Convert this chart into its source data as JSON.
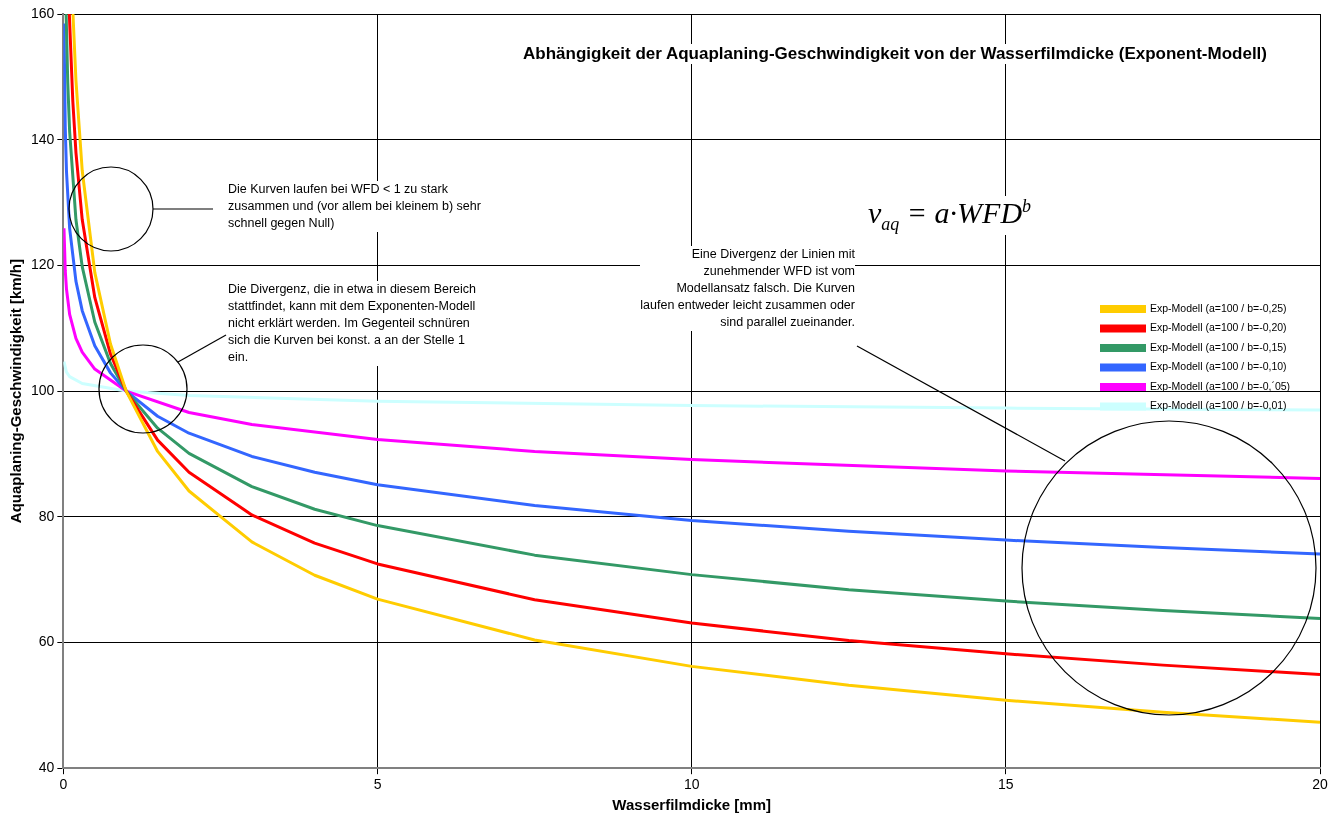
{
  "chart_data": {
    "type": "line",
    "title": "Abhängigkeit der Aquaplaning-Geschwindigkeit von der Wasserfilmdicke  (Exponent-Modell)",
    "xlabel": "Wasserfilmdicke [mm]",
    "ylabel": "Aquaplaning-Geschwindigkeit [km/h]",
    "xlim": [
      0,
      20
    ],
    "xticks": [
      0,
      5,
      10,
      15,
      20
    ],
    "ylim": [
      40,
      160
    ],
    "yticks": [
      40,
      60,
      80,
      100,
      120,
      140,
      160
    ],
    "grid": true,
    "legend": "right",
    "marker": "none",
    "series": [
      {
        "name": "Exp-Modell (a=100 / b=-0,25)",
        "color": "#ffcc00",
        "x": [
          0.153,
          0.2,
          0.3,
          0.5,
          0.75,
          1,
          1.5,
          2,
          3,
          4,
          5,
          7.5,
          10,
          12.5,
          15,
          17.5,
          20
        ],
        "values": [
          160,
          149.5,
          135.1,
          118.9,
          107.5,
          100,
          90.4,
          84.1,
          76.0,
          70.7,
          66.9,
          60.4,
          56.2,
          53.2,
          50.8,
          48.9,
          47.3
        ]
      },
      {
        "name": "Exp-Modell (a=100 / b=-0,20)",
        "color": "#ff0000",
        "x": [
          0.095,
          0.15,
          0.2,
          0.3,
          0.5,
          0.75,
          1,
          1.5,
          2,
          3,
          4,
          5,
          7.5,
          10,
          12.5,
          15,
          17.5,
          20
        ],
        "values": [
          160,
          146.2,
          138.0,
          127.3,
          114.9,
          105.9,
          100,
          92.2,
          87.1,
          80.3,
          75.8,
          72.5,
          66.8,
          63.1,
          60.3,
          58.2,
          56.4,
          54.9
        ]
      },
      {
        "name": "Exp-Modell (a=100 / b=-0,15)",
        "color": "#339966",
        "x": [
          0.044,
          0.07,
          0.1,
          0.2,
          0.3,
          0.5,
          0.75,
          1,
          1.5,
          2,
          3,
          4,
          5,
          7.5,
          10,
          12.5,
          15,
          17.5,
          20
        ],
        "values": [
          160,
          149.1,
          141.3,
          127.3,
          119.8,
          111.0,
          104.4,
          100,
          94.1,
          90.1,
          84.8,
          81.2,
          78.6,
          73.9,
          70.8,
          68.4,
          66.6,
          65.1,
          63.8
        ]
      },
      {
        "name": "Exp-Modell (a=100 / b=-0,10)",
        "color": "#3366ff",
        "x": [
          0.01,
          0.03,
          0.05,
          0.1,
          0.2,
          0.3,
          0.5,
          0.75,
          1,
          1.5,
          2,
          3,
          4,
          5,
          7.5,
          10,
          12.5,
          15,
          17.5,
          20
        ],
        "values": [
          158.5,
          142.0,
          134.9,
          125.9,
          117.5,
          112.8,
          107.2,
          102.9,
          100,
          96.0,
          93.3,
          89.6,
          87.1,
          85.1,
          81.8,
          79.4,
          77.7,
          76.3,
          75.1,
          74.1
        ]
      },
      {
        "name": "Exp-Modell (a=100 / b=-0,´05)",
        "color": "#ff00ff",
        "x": [
          0.01,
          0.03,
          0.05,
          0.1,
          0.2,
          0.3,
          0.5,
          1,
          2,
          3,
          5,
          7.5,
          10,
          15,
          20
        ],
        "values": [
          125.9,
          119.2,
          116.2,
          112.2,
          108.4,
          106.2,
          103.5,
          100,
          96.6,
          94.7,
          92.3,
          90.4,
          89.1,
          87.3,
          86.1
        ]
      },
      {
        "name": "Exp-Modell (a=100 / b=-0,01)",
        "color": "#ccffff",
        "x": [
          0.01,
          0.05,
          0.1,
          0.3,
          1,
          2,
          5,
          10,
          15,
          20
        ],
        "values": [
          104.7,
          103.0,
          102.3,
          101.2,
          100,
          99.3,
          98.4,
          97.7,
          97.3,
          97.0
        ]
      }
    ],
    "annotations": [
      "Die Kurven laufen bei WFD < 1 zu stark zusammen und (vor allem bei kleinem b) sehr schnell gegen Null)",
      "Die Divergenz, die in etwa in diesem Bereich stattfindet, kann mit dem Exponenten-Modell nicht erklärt werden. Im Gegenteil schnüren sich die Kurven bei konst. a an der Stelle 1 ein.",
      "Eine Divergenz der Linien mit zunehmender WFD ist vom Modellansatz falsch. Die Kurven laufen entweder leicht zusammen oder sind parallel zueinander.",
      "v$_{aq}$ = a·WFD$^{b}$"
    ]
  }
}
